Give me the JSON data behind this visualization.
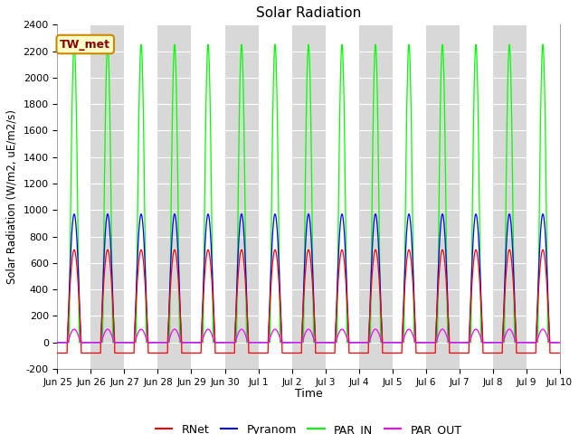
{
  "title": "Solar Radiation",
  "ylabel": "Solar Radiation (W/m2, uE/m2/s)",
  "xlabel": "Time",
  "ylim": [
    -200,
    2400
  ],
  "yticks": [
    -200,
    0,
    200,
    400,
    600,
    800,
    1000,
    1200,
    1400,
    1600,
    1800,
    2000,
    2200,
    2400
  ],
  "xtick_labels": [
    "Jun 25",
    "Jun 26",
    "Jun 27",
    "Jun 28",
    "Jun 29",
    "Jun 30",
    "Jul 1",
    "Jul 2",
    "Jul 3",
    "Jul 4",
    "Jul 5",
    "Jul 6",
    "Jul 7",
    "Jul 8",
    "Jul 9",
    "Jul 10"
  ],
  "series": {
    "RNet": {
      "color": "#ff0000",
      "label": "RNet"
    },
    "Pyranom": {
      "color": "#0000ff",
      "label": "Pyranom"
    },
    "PAR_IN": {
      "color": "#00ff00",
      "label": "PAR_IN"
    },
    "PAR_OUT": {
      "color": "#ff00ff",
      "label": "PAR_OUT"
    }
  },
  "annotation_text": "TW_met",
  "annotation_box_color": "#ffffc8",
  "annotation_border_color": "#cc8800",
  "band_color_odd": "#d8d8d8",
  "band_color_even": "#ffffff",
  "num_days": 15,
  "points_per_day": 288,
  "rnet_peak": 700,
  "pyranom_peak": 970,
  "par_in_peak": 2250,
  "par_out_peak": 100,
  "rnet_night": -80,
  "figwidth": 6.4,
  "figheight": 4.8,
  "dpi": 100
}
